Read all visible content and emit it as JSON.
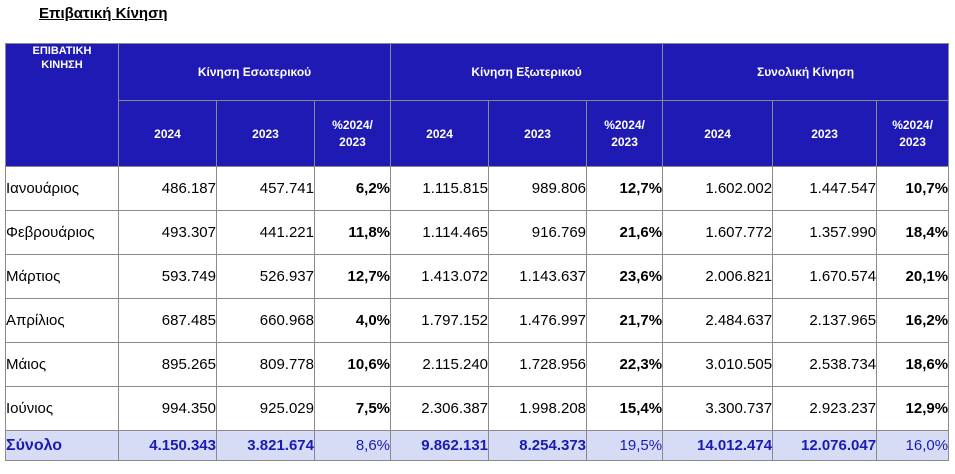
{
  "page": {
    "title": "Επιβατική Κίνηση"
  },
  "table": {
    "corner": [
      "ΕΠΙΒΑΤΙΚΗ",
      "ΚΙΝΗΣΗ"
    ],
    "groups": [
      "Κίνηση Εσωτερικού",
      "Κίνηση Εξωτερικού",
      "Συνολική Κίνηση"
    ],
    "subheaders": {
      "year_a": "2024",
      "year_b": "2023",
      "pct": [
        "%2024/",
        "2023"
      ]
    },
    "rows": [
      {
        "month": "Ιανουάριος",
        "dom_2024": "486.187",
        "dom_2023": "457.741",
        "dom_pct": "6,2%",
        "int_2024": "1.115.815",
        "int_2023": "989.806",
        "int_pct": "12,7%",
        "tot_2024": "1.602.002",
        "tot_2023": "1.447.547",
        "tot_pct": "10,7%"
      },
      {
        "month": "Φεβρουάριος",
        "dom_2024": "493.307",
        "dom_2023": "441.221",
        "dom_pct": "11,8%",
        "int_2024": "1.114.465",
        "int_2023": "916.769",
        "int_pct": "21,6%",
        "tot_2024": "1.607.772",
        "tot_2023": "1.357.990",
        "tot_pct": "18,4%"
      },
      {
        "month": "Μάρτιος",
        "dom_2024": "593.749",
        "dom_2023": "526.937",
        "dom_pct": "12,7%",
        "int_2024": "1.413.072",
        "int_2023": "1.143.637",
        "int_pct": "23,6%",
        "tot_2024": "2.006.821",
        "tot_2023": "1.670.574",
        "tot_pct": "20,1%"
      },
      {
        "month": "Απρίλιος",
        "dom_2024": "687.485",
        "dom_2023": "660.968",
        "dom_pct": "4,0%",
        "int_2024": "1.797.152",
        "int_2023": "1.476.997",
        "int_pct": "21,7%",
        "tot_2024": "2.484.637",
        "tot_2023": "2.137.965",
        "tot_pct": "16,2%"
      },
      {
        "month": "Μάιος",
        "dom_2024": "895.265",
        "dom_2023": "809.778",
        "dom_pct": "10,6%",
        "int_2024": "2.115.240",
        "int_2023": "1.728.956",
        "int_pct": "22,3%",
        "tot_2024": "3.010.505",
        "tot_2023": "2.538.734",
        "tot_pct": "18,6%"
      },
      {
        "month": "Ιούνιος",
        "dom_2024": "994.350",
        "dom_2023": "925.029",
        "dom_pct": "7,5%",
        "int_2024": "2.306.387",
        "int_2023": "1.998.208",
        "int_pct": "15,4%",
        "tot_2024": "3.300.737",
        "tot_2023": "2.923.237",
        "tot_pct": "12,9%"
      }
    ],
    "total": {
      "month": "Σύνολο",
      "dom_2024": "4.150.343",
      "dom_2023": "3.821.674",
      "dom_pct": "8,6%",
      "int_2024": "9.862.131",
      "int_2023": "8.254.373",
      "int_pct": "19,5%",
      "tot_2024": "14.012.474",
      "tot_2023": "12.076.047",
      "tot_pct": "16,0%"
    }
  },
  "colors": {
    "header_bg": "#1f1ab3",
    "header_text": "#ffffff",
    "total_bg": "#d6dcf5",
    "total_text": "#1a1ab5"
  }
}
